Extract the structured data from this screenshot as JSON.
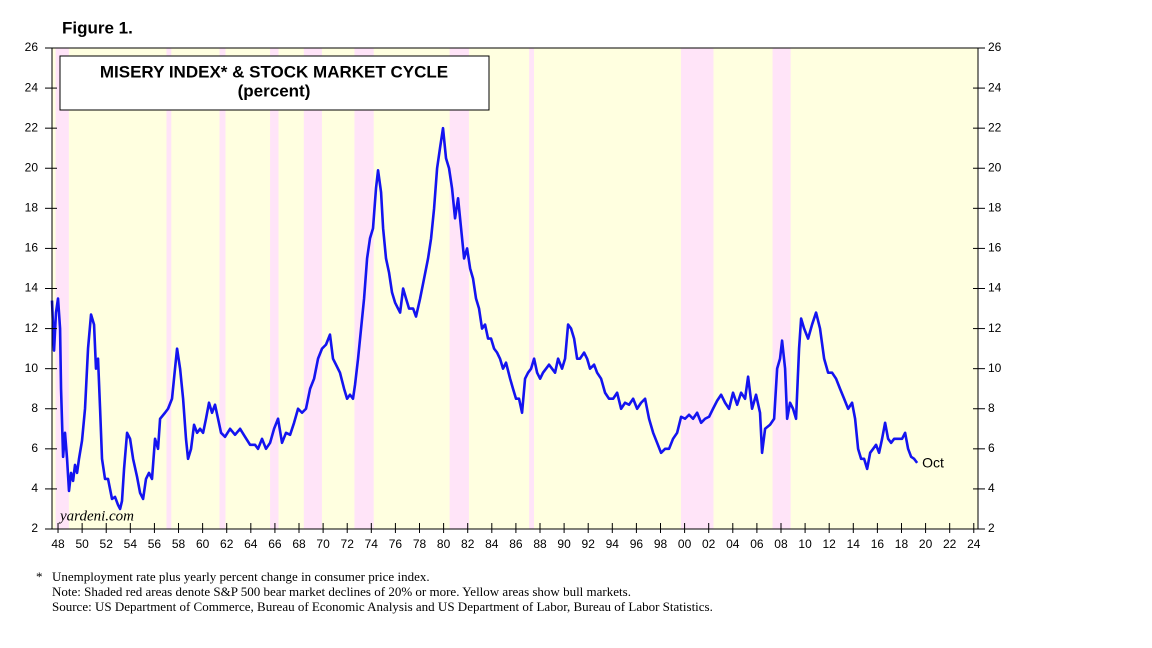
{
  "chart_data": {
    "type": "line",
    "figure_label": "Figure 1.",
    "title": "MISERY INDEX* & STOCK MARKET CYCLE",
    "subtitle": "(percent)",
    "watermark": "yardeni.com",
    "annotation": "Oct",
    "footnote_marker": "*",
    "footnotes": [
      "Unemployment rate plus yearly percent change in consumer price index.",
      "Note: Shaded red areas denote S&P 500 bear market declines of 20% or more. Yellow areas show bull markets.",
      "Source: US Department of Commerce, Bureau of Economic Analysis and US Department of Labor, Bureau of Labor Statistics."
    ],
    "color": "#1414f0",
    "bull_color": "#ffffe0",
    "bear_color": "#ffe4f8",
    "bear_markets": [
      [
        1947.8,
        1948.9
      ],
      [
        1957.0,
        1957.4
      ],
      [
        1961.4,
        1961.9
      ],
      [
        1965.6,
        1966.3
      ],
      [
        1968.4,
        1969.9
      ],
      [
        1972.6,
        1974.2
      ],
      [
        1980.5,
        1982.1
      ],
      [
        1987.1,
        1987.5
      ],
      [
        1999.7,
        2002.4
      ],
      [
        2007.3,
        2008.8
      ]
    ],
    "x": [
      1947.5,
      1947.67,
      1947.83,
      1948.0,
      1948.17,
      1948.25,
      1948.42,
      1948.58,
      1948.75,
      1948.91,
      1949.08,
      1949.25,
      1949.41,
      1949.58,
      1949.74,
      1949.99,
      1950.24,
      1950.49,
      1950.74,
      1950.99,
      1951.15,
      1951.32,
      1951.49,
      1951.65,
      1951.9,
      1952.15,
      1952.48,
      1952.73,
      1952.98,
      1953.15,
      1953.31,
      1953.48,
      1953.73,
      1953.98,
      1954.23,
      1954.56,
      1954.81,
      1955.06,
      1955.3,
      1955.55,
      1955.8,
      1956.05,
      1956.3,
      1956.47,
      1956.88,
      1957.13,
      1957.46,
      1957.71,
      1957.88,
      1958.13,
      1958.38,
      1958.62,
      1958.79,
      1959.04,
      1959.29,
      1959.54,
      1959.79,
      1960.04,
      1960.28,
      1960.53,
      1960.78,
      1961.03,
      1961.28,
      1961.53,
      1961.86,
      1962.28,
      1962.69,
      1963.11,
      1963.52,
      1963.94,
      1964.35,
      1964.6,
      1964.93,
      1965.26,
      1965.6,
      1965.93,
      1966.26,
      1966.59,
      1966.92,
      1967.26,
      1967.59,
      1967.92,
      1968.25,
      1968.58,
      1968.92,
      1969.25,
      1969.58,
      1969.91,
      1970.24,
      1970.57,
      1970.82,
      1971.07,
      1971.4,
      1971.74,
      1971.99,
      1972.23,
      1972.48,
      1972.65,
      1972.9,
      1973.15,
      1973.4,
      1973.65,
      1973.89,
      1974.14,
      1974.39,
      1974.56,
      1974.81,
      1974.98,
      1975.22,
      1975.47,
      1975.72,
      1975.97,
      1976.22,
      1976.39,
      1976.64,
      1976.88,
      1977.13,
      1977.47,
      1977.71,
      1978.05,
      1978.38,
      1978.71,
      1978.96,
      1979.21,
      1979.46,
      1979.7,
      1979.95,
      1980.2,
      1980.45,
      1980.7,
      1980.95,
      1981.2,
      1981.45,
      1981.7,
      1981.95,
      1982.2,
      1982.44,
      1982.69,
      1982.94,
      1983.19,
      1983.44,
      1983.69,
      1983.94,
      1984.19,
      1984.44,
      1984.68,
      1984.93,
      1985.18,
      1985.52,
      1985.76,
      1986.01,
      1986.26,
      1986.51,
      1986.76,
      1987.01,
      1987.26,
      1987.51,
      1987.76,
      1988.01,
      1988.25,
      1988.5,
      1988.75,
      1989.0,
      1989.25,
      1989.5,
      1989.83,
      1990.08,
      1990.33,
      1990.58,
      1990.83,
      1991.08,
      1991.32,
      1991.66,
      1991.91,
      1992.15,
      1992.49,
      1992.74,
      1993.07,
      1993.4,
      1993.73,
      1994.07,
      1994.4,
      1994.73,
      1995.06,
      1995.39,
      1995.73,
      1996.06,
      1996.39,
      1996.72,
      1997.05,
      1997.39,
      1997.72,
      1998.05,
      1998.38,
      1998.71,
      1999.04,
      1999.38,
      1999.71,
      2000.04,
      2000.37,
      2000.7,
      2001.04,
      2001.37,
      2001.7,
      2002.03,
      2002.36,
      2002.7,
      2003.03,
      2003.36,
      2003.69,
      2004.02,
      2004.36,
      2004.69,
      2005.02,
      2005.27,
      2005.6,
      2005.93,
      2006.26,
      2006.43,
      2006.68,
      2007.09,
      2007.43,
      2007.68,
      2007.92,
      2008.09,
      2008.34,
      2008.51,
      2008.75,
      2009.0,
      2009.25,
      2009.5,
      2009.67,
      2009.92,
      2010.25,
      2010.58,
      2010.91,
      2011.24,
      2011.58,
      2011.91,
      2012.24,
      2012.57,
      2012.9,
      2013.24,
      2013.57,
      2013.9,
      2014.15,
      2014.4,
      2014.65,
      2014.9,
      2015.15,
      2015.4,
      2015.65,
      2015.89,
      2016.14,
      2016.39,
      2016.64,
      2016.89,
      2017.14,
      2017.39,
      2017.72,
      2018.05,
      2018.3,
      2018.55,
      2018.8,
      2019.05,
      2019.3
    ],
    "values": [
      13.4,
      10.9,
      12.8,
      13.5,
      12.0,
      9.0,
      5.6,
      6.8,
      5.5,
      3.9,
      4.8,
      4.4,
      5.2,
      4.8,
      5.5,
      6.4,
      8.0,
      11.0,
      12.7,
      12.2,
      10.0,
      10.5,
      8.0,
      5.5,
      4.5,
      4.5,
      3.5,
      3.6,
      3.2,
      3.0,
      3.4,
      5.0,
      6.8,
      6.5,
      5.5,
      4.6,
      3.8,
      3.5,
      4.5,
      4.8,
      4.5,
      6.5,
      6.0,
      7.5,
      7.8,
      8.0,
      8.5,
      10.0,
      11.0,
      10.0,
      8.5,
      6.5,
      5.5,
      6.0,
      7.2,
      6.8,
      7.0,
      6.8,
      7.5,
      8.3,
      7.8,
      8.2,
      7.5,
      6.8,
      6.6,
      7.0,
      6.7,
      7.0,
      6.6,
      6.2,
      6.2,
      6.0,
      6.5,
      6.0,
      6.3,
      7.0,
      7.5,
      6.3,
      6.8,
      6.7,
      7.3,
      8.0,
      7.8,
      8.0,
      9.0,
      9.5,
      10.5,
      11.0,
      11.2,
      11.7,
      10.5,
      10.2,
      9.8,
      9.0,
      8.5,
      8.7,
      8.5,
      9.2,
      10.5,
      12.0,
      13.5,
      15.5,
      16.5,
      17.0,
      19.0,
      19.9,
      18.8,
      17.0,
      15.5,
      14.8,
      13.8,
      13.3,
      13.0,
      12.8,
      14.0,
      13.5,
      13.0,
      13.0,
      12.6,
      13.5,
      14.5,
      15.5,
      16.5,
      18.0,
      20.0,
      21.0,
      22.0,
      20.5,
      20.0,
      19.0,
      17.5,
      18.5,
      17.0,
      15.5,
      16.0,
      15.0,
      14.5,
      13.5,
      13.0,
      12.0,
      12.2,
      11.5,
      11.5,
      11.0,
      10.8,
      10.5,
      10.0,
      10.3,
      9.5,
      9.0,
      8.5,
      8.5,
      7.8,
      9.5,
      9.8,
      10.0,
      10.5,
      9.8,
      9.5,
      9.8,
      10.0,
      10.2,
      10.0,
      9.8,
      10.5,
      10.0,
      10.5,
      12.2,
      12.0,
      11.5,
      10.5,
      10.5,
      10.8,
      10.5,
      10.0,
      10.2,
      9.8,
      9.5,
      8.8,
      8.5,
      8.5,
      8.8,
      8.0,
      8.3,
      8.2,
      8.5,
      8.0,
      8.3,
      8.5,
      7.5,
      6.8,
      6.3,
      5.8,
      6.0,
      6.0,
      6.5,
      6.8,
      7.6,
      7.5,
      7.7,
      7.5,
      7.8,
      7.3,
      7.5,
      7.6,
      8.0,
      8.4,
      8.7,
      8.3,
      8.0,
      8.8,
      8.2,
      8.8,
      8.5,
      9.6,
      8.0,
      8.7,
      7.8,
      5.8,
      7.0,
      7.2,
      7.5,
      10.0,
      10.5,
      11.4,
      10.0,
      7.5,
      8.3,
      8.0,
      7.5,
      11.0,
      12.5,
      12.0,
      11.5,
      12.2,
      12.8,
      12.0,
      10.5,
      9.8,
      9.8,
      9.5,
      9.0,
      8.5,
      8.0,
      8.3,
      7.5,
      6.0,
      5.5,
      5.5,
      5.0,
      5.8,
      6.0,
      6.2,
      5.8,
      6.5,
      7.3,
      6.5,
      6.3,
      6.5,
      6.5,
      6.5,
      6.8,
      6.0,
      5.6,
      5.5,
      5.3
    ],
    "xlim": [
      1947.5,
      2024.35
    ],
    "ylim": [
      2,
      26
    ],
    "xticks": [
      {
        "value": 1948,
        "label": "48"
      },
      {
        "value": 1950,
        "label": "50"
      },
      {
        "value": 1952,
        "label": "52"
      },
      {
        "value": 1954,
        "label": "54"
      },
      {
        "value": 1956,
        "label": "56"
      },
      {
        "value": 1958,
        "label": "58"
      },
      {
        "value": 1960,
        "label": "60"
      },
      {
        "value": 1962,
        "label": "62"
      },
      {
        "value": 1964,
        "label": "64"
      },
      {
        "value": 1966,
        "label": "66"
      },
      {
        "value": 1968,
        "label": "68"
      },
      {
        "value": 1970,
        "label": "70"
      },
      {
        "value": 1972,
        "label": "72"
      },
      {
        "value": 1974,
        "label": "74"
      },
      {
        "value": 1976,
        "label": "76"
      },
      {
        "value": 1978,
        "label": "78"
      },
      {
        "value": 1980,
        "label": "80"
      },
      {
        "value": 1982,
        "label": "82"
      },
      {
        "value": 1984,
        "label": "84"
      },
      {
        "value": 1986,
        "label": "86"
      },
      {
        "value": 1988,
        "label": "88"
      },
      {
        "value": 1990,
        "label": "90"
      },
      {
        "value": 1992,
        "label": "92"
      },
      {
        "value": 1994,
        "label": "94"
      },
      {
        "value": 1996,
        "label": "96"
      },
      {
        "value": 1998,
        "label": "98"
      },
      {
        "value": 2000,
        "label": "00"
      },
      {
        "value": 2002,
        "label": "02"
      },
      {
        "value": 2004,
        "label": "04"
      },
      {
        "value": 2006,
        "label": "06"
      },
      {
        "value": 2008,
        "label": "08"
      },
      {
        "value": 2010,
        "label": "10"
      },
      {
        "value": 2012,
        "label": "12"
      },
      {
        "value": 2014,
        "label": "14"
      },
      {
        "value": 2016,
        "label": "16"
      },
      {
        "value": 2018,
        "label": "18"
      },
      {
        "value": 2020,
        "label": "20"
      },
      {
        "value": 2022,
        "label": "22"
      },
      {
        "value": 2024,
        "label": "24"
      }
    ],
    "yticks": [
      2,
      4,
      6,
      8,
      10,
      12,
      14,
      16,
      18,
      20,
      22,
      24,
      26
    ]
  }
}
